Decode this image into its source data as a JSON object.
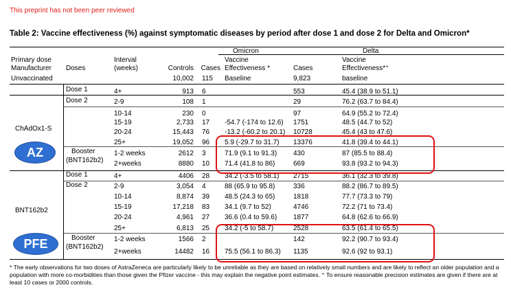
{
  "watermark": "This preprint has not been peer reviewed",
  "title": "Table 2: Vaccine effectiveness (%) against symptomatic diseases by period after dose 1 and dose 2 for Delta and Omicron*",
  "header": {
    "omicron": "Omicron",
    "delta": "Delta",
    "primary_dose": "Primary dose",
    "manufacturer": "Manufacturer",
    "doses": "Doses",
    "interval": "Interval",
    "weeks": "(weeks)",
    "controls": "Controls",
    "cases": "Cases",
    "vaccine": "Vaccine",
    "effectiveness_om": "Effectiveness *",
    "cases2": "Cases",
    "vaccine2": "Vaccine",
    "effectiveness_de": "Effectiveness*⁺"
  },
  "unvaccinated": {
    "label": "Unvaccinated",
    "controls": "10,002",
    "cases": "115",
    "ve_om": "Baseline",
    "cases_de": "9,823",
    "ve_de": "baseline"
  },
  "groups": {
    "chadox": "ChAdOx1-S",
    "bnt": "BNT162b2",
    "dose1": "Dose 1",
    "dose2": "Dose 2",
    "booster": "Booster",
    "booster_pfizer": "(BNT162b2)",
    "dose1_b": "Dose 1",
    "dose2_b": "Dose 2",
    "booster_b": "Booster",
    "booster_pfizer_b": "(BNT162b2)"
  },
  "badges": {
    "az": "AZ",
    "pfe": "PFE"
  },
  "rows": [
    {
      "interval": "4+",
      "controls": "913",
      "cases": "6",
      "ve_om": "",
      "cases_de": "553",
      "ve_de": "45.4 (38.9 to 51.1)"
    },
    {
      "interval": "2-9",
      "controls": "108",
      "cases": "1",
      "ve_om": "",
      "cases_de": "29",
      "ve_de": "76.2 (63.7 to 84.4)"
    },
    {
      "interval": "10-14",
      "controls": "230",
      "cases": "0",
      "ve_om": "",
      "cases_de": "97",
      "ve_de": "64.9 (55.2 to 72.4)"
    },
    {
      "interval": "15-19",
      "controls": "2,733",
      "cases": "17",
      "ve_om": "-54.7 (-174 to 12.6)",
      "cases_de": "1751",
      "ve_de": "48.5 (44.7 to 52)"
    },
    {
      "interval": "20-24",
      "controls": "15,443",
      "cases": "76",
      "ve_om": "-13.2 (-60.2 to 20.1)",
      "cases_de": "10728",
      "ve_de": "45.4 (43 to 47.6)"
    },
    {
      "interval": "25+",
      "controls": "19,052",
      "cases": "96",
      "ve_om": "5.9 (-29.7 to 31.7)",
      "cases_de": "13376",
      "ve_de": "41.8 (39.4 to 44.1)"
    },
    {
      "interval": "1-2 weeks",
      "controls": "2612",
      "cases": "3",
      "ve_om": "71.9 (9.1 to 91.3)",
      "cases_de": "430",
      "ve_de": "87 (85.5 to 88.4)"
    },
    {
      "interval": "2+weeks",
      "controls": "8880",
      "cases": "10",
      "ve_om": "71.4 (41.8 to 86)",
      "cases_de": "669",
      "ve_de": "93.8 (93.2 to 94.3)"
    },
    {
      "interval": "4+",
      "controls": "4406",
      "cases": "28",
      "ve_om": "34.2 (-3.5 to 58.1)",
      "cases_de": "2715",
      "ve_de": "36.1 (32.3 to 39.8)"
    },
    {
      "interval": "2-9",
      "controls": "3,054",
      "cases": "4",
      "ve_om": "88 (65.9 to 95.8)",
      "cases_de": "336",
      "ve_de": "88.2 (86.7 to 89.5)"
    },
    {
      "interval": "10-14",
      "controls": "8,874",
      "cases": "39",
      "ve_om": "48.5 (24.3 to 65)",
      "cases_de": "1818",
      "ve_de": "77.7 (73.3 to 79)"
    },
    {
      "interval": "15-19",
      "controls": "17,218",
      "cases": "83",
      "ve_om": "34.1 (9.7 to 52)",
      "cases_de": "4746",
      "ve_de": "72.2 (71 to 73.4)"
    },
    {
      "interval": "20-24",
      "controls": "4,961",
      "cases": "27",
      "ve_om": "36.6 (0.4 to 59.6)",
      "cases_de": "1877",
      "ve_de": "64.8 (62.6 to 66.9)"
    },
    {
      "interval": "25+",
      "controls": "6,813",
      "cases": "25",
      "ve_om": "34.2 (-5 to 58.7)",
      "cases_de": "2528",
      "ve_de": "63.5 (61.4 to 65.5)"
    },
    {
      "interval": "1-2 weeks",
      "controls": "1566",
      "cases": "2",
      "ve_om": "",
      "cases_de": "142",
      "ve_de": "92.2 (90.7 to 93.4)"
    },
    {
      "interval": "2+weeks",
      "controls": "14482",
      "cases": "16",
      "ve_om": "75.5 (56.1 to 86.3)",
      "cases_de": "1135",
      "ve_de": "92.6 (92 to 93.1)"
    }
  ],
  "footnote": "* The early observations for two doses of AstraZeneca are particularly likely to be unreliable as they are based on relatively small numbers and are likely to reflect an older population and a population with more co-morbidities than those given the Pfizer vaccine - this may explain the negative point estimates. ⁺ To ensure reasonable precision estimates are given if there are at least 10 cases or 2000 controls.",
  "colors": {
    "highlight": "#e01010",
    "badge": "#2f6fd1",
    "watermark": "#e0201b"
  }
}
